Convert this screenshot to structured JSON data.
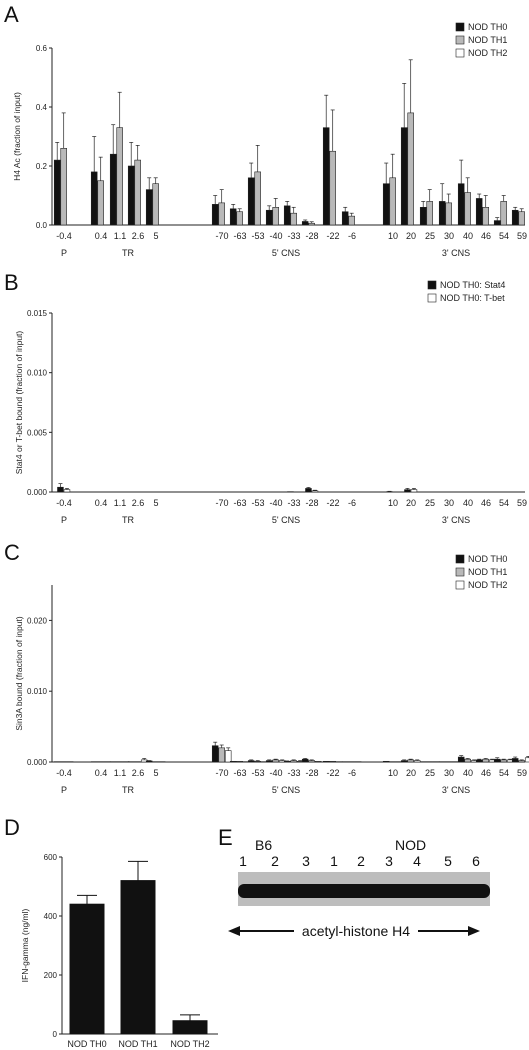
{
  "colors": {
    "th0": "#111111",
    "th1": "#b9b9b9",
    "th2": "#ffffff",
    "axis": "#222222"
  },
  "chart_data": [
    {
      "panel": "A",
      "type": "bar",
      "ylabel": "H4 Ac (fraction of input)",
      "ylim": [
        0,
        0.6
      ],
      "yticks": [
        "0.0",
        "0.2",
        "0.4",
        "0.6"
      ],
      "ytick_values": [
        0,
        0.2,
        0.4,
        0.6
      ],
      "legend": "top-right",
      "categories": [
        "-0.4",
        "0.4",
        "1.1",
        "2.6",
        "5",
        "-70",
        "-63",
        "-53",
        "-40",
        "-33",
        "-28",
        "-22",
        "-6",
        "10",
        "20",
        "25",
        "30",
        "40",
        "46",
        "54",
        "59"
      ],
      "groups": [
        {
          "label": "P",
          "categories": [
            "-0.4"
          ]
        },
        {
          "label": "TR",
          "categories": [
            "0.4",
            "1.1",
            "2.6",
            "5"
          ]
        },
        {
          "label": "5' CNS",
          "categories": [
            "-70",
            "-63",
            "-53",
            "-40",
            "-33",
            "-28",
            "-22",
            "-6"
          ]
        },
        {
          "label": "3' CNS",
          "categories": [
            "10",
            "20",
            "25",
            "30",
            "40",
            "46",
            "54",
            "59"
          ]
        }
      ],
      "series": [
        {
          "name": "NOD TH0",
          "color": "#111111",
          "values": [
            0.22,
            0.18,
            0.24,
            0.2,
            0.12,
            0.07,
            0.055,
            0.16,
            0.05,
            0.065,
            0.012,
            0.33,
            0.045,
            0.14,
            0.33,
            0.06,
            0.08,
            0.14,
            0.09,
            0.015,
            0.05
          ],
          "errors": [
            0.06,
            0.12,
            0.1,
            0.08,
            0.04,
            0.03,
            0.015,
            0.05,
            0.015,
            0.015,
            0.005,
            0.11,
            0.015,
            0.07,
            0.15,
            0.02,
            0.06,
            0.08,
            0.015,
            0.01,
            0.01
          ]
        },
        {
          "name": "NOD TH1",
          "color": "#b9b9b9",
          "values": [
            0.26,
            0.15,
            0.33,
            0.22,
            0.14,
            0.075,
            0.045,
            0.18,
            0.06,
            0.04,
            0.006,
            0.25,
            0.03,
            0.16,
            0.38,
            0.08,
            0.075,
            0.11,
            0.06,
            0.08,
            0.045
          ],
          "errors": [
            0.12,
            0.08,
            0.12,
            0.05,
            0.02,
            0.045,
            0.01,
            0.09,
            0.03,
            0.02,
            0.005,
            0.14,
            0.01,
            0.08,
            0.18,
            0.04,
            0.03,
            0.05,
            0.04,
            0.02,
            0.01
          ]
        },
        {
          "name": "NOD TH2",
          "color": "#ffffff",
          "values": [
            0,
            0,
            0,
            0,
            0,
            0,
            0,
            0,
            0,
            0,
            0,
            0,
            0,
            0,
            0,
            0,
            0,
            0,
            0,
            0,
            0
          ],
          "errors": [
            0,
            0,
            0,
            0,
            0,
            0,
            0,
            0,
            0,
            0,
            0,
            0,
            0,
            0,
            0,
            0,
            0,
            0,
            0,
            0,
            0
          ]
        }
      ]
    },
    {
      "panel": "B",
      "type": "bar",
      "ylabel": "Stat4 or T-bet bound (fraction of input)",
      "ylim": [
        0,
        0.015
      ],
      "yticks": [
        "0.000",
        "0.005",
        "0.010",
        "0.015"
      ],
      "ytick_values": [
        0,
        0.005,
        0.01,
        0.015
      ],
      "legend": "top-right",
      "categories": [
        "-0.4",
        "0.4",
        "1.1",
        "2.6",
        "5",
        "-70",
        "-63",
        "-53",
        "-40",
        "-33",
        "-28",
        "-22",
        "-6",
        "10",
        "20",
        "25",
        "30",
        "40",
        "46",
        "54",
        "59"
      ],
      "groups": [
        {
          "label": "P",
          "categories": [
            "-0.4"
          ]
        },
        {
          "label": "TR",
          "categories": [
            "0.4",
            "1.1",
            "2.6",
            "5"
          ]
        },
        {
          "label": "5' CNS",
          "categories": [
            "-70",
            "-63",
            "-53",
            "-40",
            "-33",
            "-28",
            "-22",
            "-6"
          ]
        },
        {
          "label": "3' CNS",
          "categories": [
            "10",
            "20",
            "25",
            "30",
            "40",
            "46",
            "54",
            "59"
          ]
        }
      ],
      "series": [
        {
          "name": "NOD TH0: Stat4",
          "color": "#111111",
          "values": [
            0.0004,
            2e-05,
            2e-05,
            2e-05,
            2e-05,
            2e-05,
            2e-05,
            2e-05,
            2e-05,
            3e-05,
            0.0003,
            2e-05,
            2e-05,
            3e-05,
            0.0002,
            2e-05,
            2e-05,
            2e-05,
            2e-05,
            2e-05,
            2e-05
          ],
          "errors": [
            0.0003,
            0,
            0,
            0,
            0,
            0,
            0,
            0,
            0,
            0,
            8e-05,
            0,
            0,
            3e-05,
            0.0001,
            0,
            0,
            0,
            0,
            0,
            0
          ]
        },
        {
          "name": "NOD TH0: T-bet",
          "color": "#ffffff",
          "values": [
            0.0002,
            2e-05,
            2e-05,
            2e-05,
            2e-05,
            2e-05,
            2e-05,
            2e-05,
            2e-05,
            2e-05,
            0.0001,
            2e-05,
            2e-05,
            2e-05,
            0.0002,
            2e-05,
            2e-05,
            2e-05,
            2e-05,
            2e-05,
            2e-05
          ],
          "errors": [
            0.0001,
            0,
            0,
            0,
            0,
            0,
            0,
            0,
            0,
            0,
            5e-05,
            0,
            0,
            0,
            0.0001,
            0,
            0,
            0,
            0,
            0,
            0
          ]
        }
      ]
    },
    {
      "panel": "C",
      "type": "bar",
      "ylabel": "Sin3A bound (fraction of input)",
      "ylim": [
        0,
        0.025
      ],
      "yticks": [
        "0.000",
        "0.010",
        "0.020"
      ],
      "ytick_values": [
        0,
        0.01,
        0.02
      ],
      "legend": "top-right",
      "categories": [
        "-0.4",
        "0.4",
        "1.1",
        "2.6",
        "5",
        "-70",
        "-63",
        "-53",
        "-40",
        "-33",
        "-28",
        "-22",
        "-6",
        "10",
        "20",
        "25",
        "30",
        "40",
        "46",
        "54",
        "59"
      ],
      "groups": [
        {
          "label": "P",
          "categories": [
            "-0.4"
          ]
        },
        {
          "label": "TR",
          "categories": [
            "0.4",
            "1.1",
            "2.6",
            "5"
          ]
        },
        {
          "label": "5' CNS",
          "categories": [
            "-70",
            "-63",
            "-53",
            "-40",
            "-33",
            "-28",
            "-22",
            "-6"
          ]
        },
        {
          "label": "3' CNS",
          "categories": [
            "10",
            "20",
            "25",
            "30",
            "40",
            "46",
            "54",
            "59"
          ]
        }
      ],
      "series": [
        {
          "name": "NOD TH0",
          "color": "#111111",
          "values": [
            5e-05,
            5e-05,
            5e-05,
            5e-05,
            0.00015,
            0.0023,
            0.0001,
            0.0002,
            0.0002,
            0.0001,
            0.0004,
            0.0001,
            5e-05,
            0.0001,
            0.0002,
            5e-05,
            5e-05,
            0.0007,
            0.0003,
            0.0004,
            0.0005
          ],
          "errors": [
            0,
            0,
            0,
            0,
            5e-05,
            0.0005,
            0,
            0.0001,
            0.0001,
            5e-05,
            0.0001,
            0,
            0,
            0,
            0.0001,
            0,
            0,
            0.0002,
            0.0001,
            0.0002,
            0.0002
          ]
        },
        {
          "name": "NOD TH1",
          "color": "#b9b9b9",
          "values": [
            5e-05,
            5e-05,
            5e-05,
            5e-05,
            5e-05,
            0.002,
            0.0001,
            0.0001,
            0.0003,
            0.0002,
            0.0002,
            0.0001,
            5e-05,
            5e-05,
            0.0003,
            5e-05,
            5e-05,
            0.0004,
            0.0004,
            0.0003,
            0.0002
          ],
          "errors": [
            0,
            0,
            0,
            0,
            0,
            0.0004,
            0,
            0.0001,
            0.0001,
            0.0001,
            0.0001,
            0,
            0,
            0,
            0.0001,
            0,
            0,
            0.0001,
            0.0001,
            0.0001,
            0.0001
          ]
        },
        {
          "name": "NOD TH2",
          "color": "#ffffff",
          "values": [
            5e-05,
            5e-05,
            5e-05,
            0.0003,
            5e-05,
            0.0016,
            5e-05,
            5e-05,
            0.0002,
            0.0001,
            0.0001,
            5e-05,
            5e-05,
            5e-05,
            0.0002,
            5e-05,
            5e-05,
            0.0002,
            0.0003,
            0.0003,
            0.0006
          ],
          "errors": [
            0,
            0,
            0,
            0.0002,
            0,
            0.0004,
            0,
            0,
            0.0001,
            0.0001,
            0,
            0,
            0,
            0,
            0.0001,
            0,
            0,
            0.0001,
            0.0001,
            0.0001,
            0.0002
          ]
        }
      ]
    },
    {
      "panel": "D",
      "type": "bar",
      "ylabel": "IFN-gamma (ng/ml)",
      "ylim": [
        0,
        600
      ],
      "yticks": [
        "0",
        "200",
        "400",
        "600"
      ],
      "ytick_values": [
        0,
        200,
        400,
        600
      ],
      "categories": [
        "NOD TH0",
        "NOD TH1",
        "NOD TH2"
      ],
      "values": [
        440,
        520,
        45
      ],
      "errors": [
        30,
        65,
        20
      ]
    }
  ],
  "panels": {
    "a": "A",
    "b": "B",
    "c": "C",
    "d": "D",
    "e": "E"
  },
  "blot": {
    "group_b6": "B6",
    "group_nod": "NOD",
    "lanes": [
      "1",
      "2",
      "3",
      "1",
      "2",
      "3",
      "4",
      "5",
      "6"
    ],
    "label": "acetyl-histone H4"
  }
}
